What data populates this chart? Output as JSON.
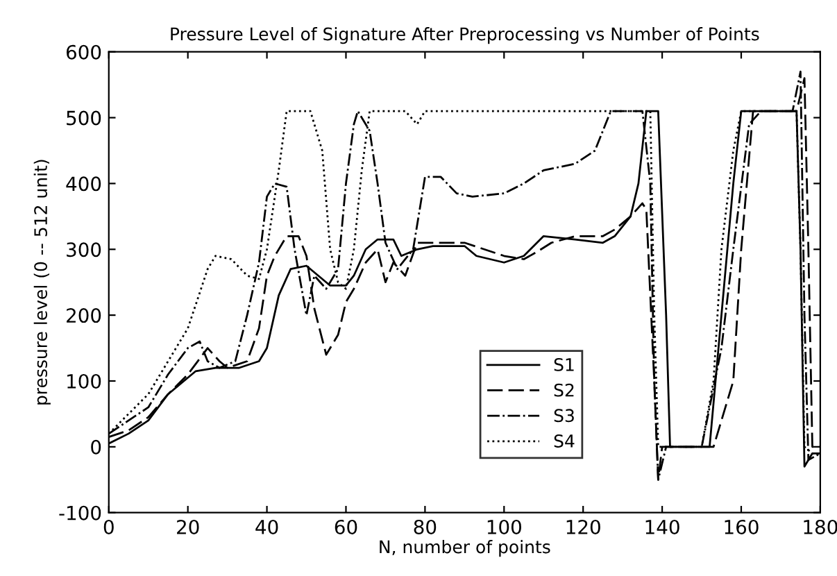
{
  "chart_data": {
    "type": "line",
    "title": "Pressure Level of Signature After Preprocessing vs Number of Points",
    "xlabel": "N, number of points",
    "ylabel": "pressure level (0 -- 512 unit)",
    "xlim": [
      0,
      180
    ],
    "ylim": [
      -100,
      600
    ],
    "xticks": [
      0,
      20,
      40,
      60,
      80,
      100,
      120,
      140,
      160,
      180
    ],
    "yticks": [
      -100,
      0,
      100,
      200,
      300,
      400,
      500,
      600
    ],
    "grid": false,
    "legend": "bottom",
    "marker": "none",
    "series": [
      {
        "name": "S1",
        "color": "#000000",
        "line_style": "solid",
        "x": [
          0,
          5,
          10,
          15,
          18,
          22,
          27,
          33,
          38,
          40,
          43,
          46,
          50,
          53,
          56,
          60,
          62,
          65,
          68,
          72,
          74,
          78,
          82,
          90,
          93,
          100,
          105,
          110,
          118,
          125,
          128,
          132,
          134,
          136,
          139,
          141,
          142,
          145,
          152,
          155,
          158,
          160,
          165,
          172,
          174,
          175,
          176,
          178,
          180
        ],
        "values": [
          5,
          20,
          40,
          80,
          95,
          115,
          120,
          120,
          130,
          150,
          230,
          270,
          275,
          260,
          245,
          245,
          260,
          300,
          315,
          315,
          290,
          300,
          305,
          305,
          290,
          280,
          290,
          320,
          315,
          310,
          320,
          350,
          400,
          510,
          510,
          200,
          0,
          0,
          0,
          200,
          400,
          510,
          510,
          510,
          510,
          300,
          -30,
          -10,
          -10
        ]
      },
      {
        "name": "S2",
        "color": "#000000",
        "line_style": "dashed",
        "x": [
          0,
          5,
          10,
          15,
          20,
          25,
          28,
          30,
          35,
          38,
          40,
          42,
          45,
          48,
          50,
          52,
          55,
          58,
          60,
          62,
          65,
          68,
          70,
          72,
          75,
          78,
          82,
          90,
          95,
          100,
          105,
          108,
          112,
          118,
          125,
          128,
          132,
          135,
          136,
          138,
          139,
          140,
          145,
          150,
          153,
          158,
          160,
          163,
          172,
          174,
          176,
          177,
          178,
          180
        ],
        "values": [
          15,
          25,
          45,
          80,
          110,
          150,
          130,
          120,
          130,
          180,
          260,
          290,
          320,
          320,
          290,
          210,
          140,
          170,
          220,
          240,
          280,
          300,
          250,
          280,
          260,
          310,
          310,
          310,
          300,
          290,
          285,
          295,
          310,
          320,
          320,
          330,
          350,
          370,
          360,
          100,
          -50,
          0,
          0,
          0,
          0,
          100,
          300,
          510,
          510,
          510,
          560,
          300,
          0,
          0
        ]
      },
      {
        "name": "S3",
        "color": "#000000",
        "line_style": "dashdot",
        "x": [
          0,
          5,
          10,
          15,
          20,
          23,
          25,
          28,
          32,
          35,
          38,
          40,
          42,
          45,
          47,
          50,
          52,
          55,
          58,
          60,
          62,
          63,
          66,
          68,
          70,
          73,
          77,
          80,
          84,
          88,
          92,
          100,
          105,
          110,
          118,
          123,
          127,
          135,
          137,
          138,
          139,
          141,
          150,
          155,
          158,
          162,
          165,
          173,
          175,
          176,
          177,
          180
        ],
        "values": [
          20,
          40,
          60,
          110,
          150,
          160,
          130,
          120,
          130,
          200,
          280,
          380,
          400,
          395,
          300,
          200,
          260,
          240,
          270,
          400,
          490,
          510,
          480,
          400,
          310,
          270,
          300,
          410,
          410,
          385,
          380,
          385,
          400,
          420,
          430,
          450,
          510,
          510,
          400,
          100,
          -50,
          0,
          0,
          150,
          300,
          490,
          510,
          510,
          570,
          200,
          -20,
          -10
        ]
      },
      {
        "name": "S4",
        "color": "#000000",
        "line_style": "dotted",
        "x": [
          0,
          5,
          10,
          15,
          20,
          25,
          27,
          31,
          35,
          38,
          40,
          43,
          45,
          51,
          54,
          56,
          58,
          60,
          62,
          64,
          66,
          70,
          75,
          78,
          80,
          90,
          100,
          135,
          137,
          138,
          139,
          142,
          150,
          153,
          155,
          158,
          160,
          172,
          174,
          175,
          176,
          178,
          180
        ],
        "values": [
          20,
          50,
          80,
          130,
          180,
          270,
          290,
          285,
          260,
          255,
          300,
          420,
          510,
          510,
          450,
          300,
          250,
          240,
          300,
          420,
          510,
          510,
          510,
          490,
          510,
          510,
          510,
          510,
          510,
          200,
          0,
          0,
          0,
          100,
          300,
          450,
          510,
          510,
          510,
          300,
          0,
          -10,
          -10
        ]
      }
    ]
  }
}
